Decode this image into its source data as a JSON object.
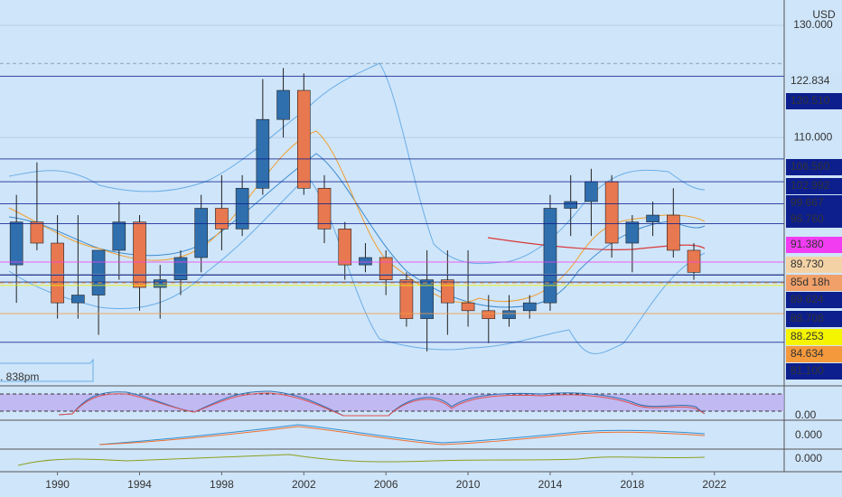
{
  "chart_data": {
    "type": "candlestick",
    "currency_label": "USD",
    "log_scale": true,
    "up_color": "#2f6fae",
    "down_color": "#e8784f",
    "x": [
      1988,
      1989,
      1990,
      1991,
      1992,
      1993,
      1994,
      1995,
      1996,
      1997,
      1998,
      1999,
      2000,
      2001,
      2002,
      2003,
      2004,
      2005,
      2006,
      2007,
      2008,
      2009,
      2010,
      2011,
      2012,
      2013,
      2014,
      2015,
      2016,
      2017,
      2018,
      2019,
      2020,
      2021
    ],
    "open": [
      91,
      97,
      94,
      86,
      87,
      93,
      97,
      88,
      89,
      92,
      99,
      96,
      102,
      113,
      118,
      102,
      96,
      91,
      92,
      89,
      84,
      89,
      86,
      85,
      84,
      85,
      86,
      99,
      100,
      103,
      94,
      97,
      98,
      93
    ],
    "high": [
      101,
      106,
      98,
      98,
      93,
      100,
      98,
      91,
      93,
      101,
      104,
      104,
      120,
      122,
      121,
      104,
      97,
      94,
      93,
      90,
      93,
      93,
      93,
      87,
      87,
      87,
      101,
      104,
      105,
      104,
      98,
      100,
      102,
      94
    ],
    "low": [
      86,
      93,
      84,
      84,
      82,
      89,
      85,
      84,
      87,
      90,
      93,
      95,
      101,
      110,
      101,
      94,
      89,
      90,
      87,
      83,
      80,
      82,
      83,
      81,
      83,
      84,
      85,
      95,
      95,
      92,
      90,
      95,
      92,
      89
    ],
    "close": [
      97,
      94,
      86,
      87,
      93,
      97,
      88,
      89,
      92,
      99,
      96,
      102,
      113,
      118,
      102,
      96,
      91,
      92,
      89,
      84,
      89,
      86,
      85,
      84,
      85,
      86,
      99,
      100,
      103,
      94,
      97,
      98,
      93,
      90
    ],
    "ylim": [
      76,
      135
    ],
    "yticks": [
      {
        "value": 130,
        "label": "130.000"
      },
      {
        "value": 110,
        "label": "110.000"
      }
    ],
    "xlim": [
      1987.2,
      2025.4
    ],
    "xticks": [
      1990,
      1994,
      1998,
      2002,
      2006,
      2010,
      2014,
      2018,
      2022
    ],
    "price_labels": [
      {
        "value": 122.834,
        "label": "122.834",
        "color": "#cde4f8"
      },
      {
        "value": 120.51,
        "label": "120.510",
        "color": "#0d1f8c"
      },
      {
        "value": 106.56,
        "label": "106.560",
        "color": "#0d1f8c"
      },
      {
        "value": 102.992,
        "label": "102.992",
        "color": "#0d1f8c"
      },
      {
        "value": 99.667,
        "label": "99.667",
        "color": "#0d1f8c"
      },
      {
        "value": 96.76,
        "label": "96.760",
        "color": "#0d1f8c"
      },
      {
        "value": 91.38,
        "label": "91.380",
        "color": "#f23cf2"
      },
      {
        "value": 89.73,
        "label": "89.730",
        "color": "#f3d3a6"
      },
      {
        "value": 89.624,
        "label": "89.624",
        "color": "#0d1f8c"
      },
      {
        "value": 88.708,
        "label": "88.708",
        "color": "#0d1f8c"
      },
      {
        "value": 88.253,
        "label": "88.253",
        "color": "#f5f500"
      },
      {
        "value": 84.634,
        "label": "84.634",
        "color": "#f59a3c"
      },
      {
        "value": 81.1,
        "label": "81.100",
        "color": "#0d1f8c"
      }
    ],
    "countdown": "85d 18h",
    "countdown_color": "#f0a068",
    "left_note": ". 838pm",
    "panels": [
      {
        "ticks": [
          {
            "value": 0,
            "label": "0.00"
          }
        ]
      },
      {
        "ticks": [
          {
            "value": 0,
            "label": "0.000"
          }
        ]
      },
      {
        "ticks": [
          {
            "value": 0,
            "label": "0.000"
          }
        ]
      }
    ]
  }
}
